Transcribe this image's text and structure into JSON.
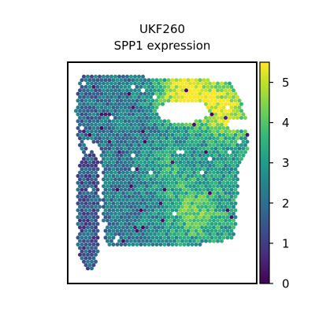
{
  "chart_data": {
    "type": "heatmap",
    "title": [
      "UKF260",
      "SPP1 expression"
    ],
    "xlabel": "",
    "ylabel": "",
    "grid": false,
    "colorbar": {
      "label": "",
      "colormap": "viridis",
      "range": [
        0,
        5.5
      ],
      "ticks": [
        0,
        1,
        2,
        3,
        4,
        5
      ],
      "tick_labels": [
        "0",
        "1",
        "2",
        "3",
        "4",
        "5"
      ]
    },
    "spots": {
      "description_of_values": "per-spot expression level, mostly 1-3.5, with high values (4-5.5) in the upper-right band and low values (0-1.5) scattered on the left",
      "value_range": [
        0,
        5.5
      ],
      "high_region_peak": 5.3,
      "typical_value": 2.5
    }
  },
  "colors": {
    "viridis": [
      "#440154",
      "#482878",
      "#3e4989",
      "#31688e",
      "#26828e",
      "#1f9e89",
      "#35b779",
      "#6ece58",
      "#b5de2b",
      "#fde725"
    ],
    "frame": "#000000",
    "background": "#ffffff"
  }
}
